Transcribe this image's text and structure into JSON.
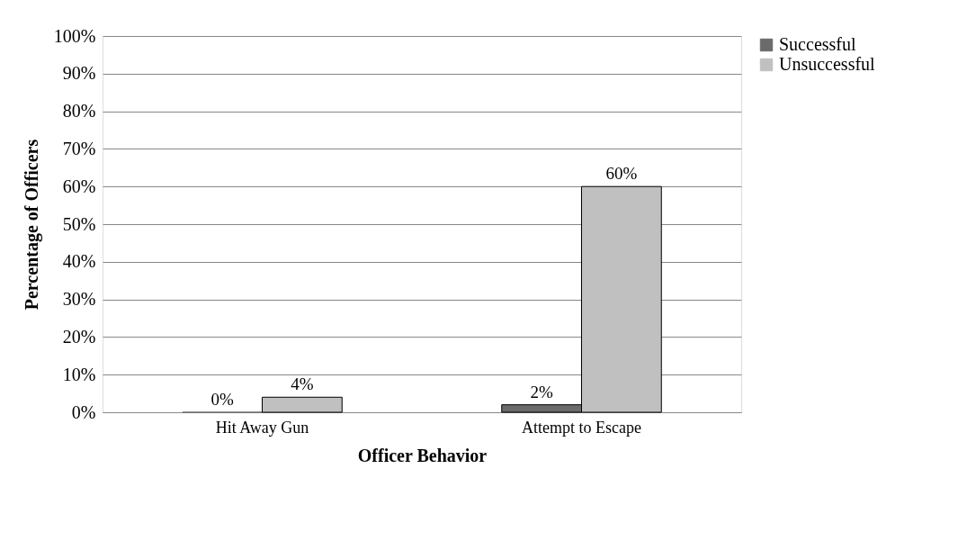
{
  "chart_data": {
    "type": "bar",
    "xlabel": "Officer Behavior",
    "ylabel": "Percentage of Officers",
    "categories": [
      "Hit Away Gun",
      "Attempt to Escape"
    ],
    "series": [
      {
        "name": "Successful",
        "color": "#6b6b6b",
        "values": [
          0,
          2
        ],
        "value_labels": [
          "0%",
          "2%"
        ]
      },
      {
        "name": "Unsuccessful",
        "color": "#c0c0c0",
        "values": [
          4,
          60
        ],
        "value_labels": [
          "4%",
          "60%"
        ]
      }
    ],
    "ylim": [
      0,
      100
    ],
    "yticks": [
      {
        "value": 0,
        "label": "0%"
      },
      {
        "value": 10,
        "label": "10%"
      },
      {
        "value": 20,
        "label": "20%"
      },
      {
        "value": 30,
        "label": "30%"
      },
      {
        "value": 40,
        "label": "40%"
      },
      {
        "value": 50,
        "label": "50%"
      },
      {
        "value": 60,
        "label": "60%"
      },
      {
        "value": 70,
        "label": "70%"
      },
      {
        "value": 80,
        "label": "80%"
      },
      {
        "value": 90,
        "label": "90%"
      },
      {
        "value": 100,
        "label": "100%"
      }
    ],
    "grid": "y",
    "legend": "right"
  }
}
